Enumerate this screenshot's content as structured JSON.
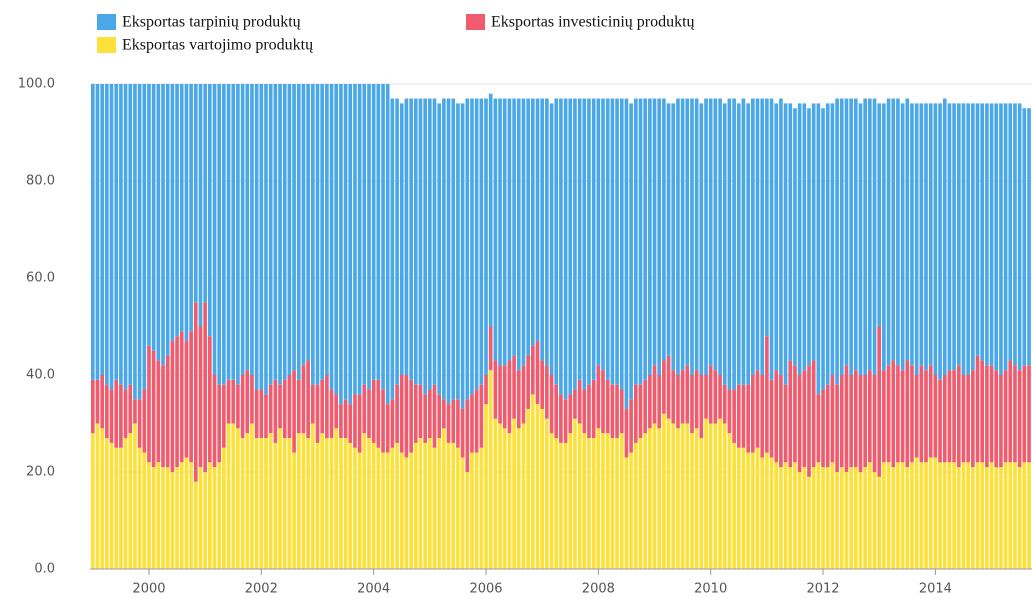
{
  "chart_data": {
    "type": "stacked_bar",
    "x": [
      1999.0,
      1999.083,
      1999.167,
      1999.25,
      1999.333,
      1999.417,
      1999.5,
      1999.583,
      1999.667,
      1999.75,
      1999.833,
      1999.917,
      2000.0,
      2000.083,
      2000.167,
      2000.25,
      2000.333,
      2000.417,
      2000.5,
      2000.583,
      2000.667,
      2000.75,
      2000.833,
      2000.917,
      2001.0,
      2001.083,
      2001.167,
      2001.25,
      2001.333,
      2001.417,
      2001.5,
      2001.583,
      2001.667,
      2001.75,
      2001.833,
      2001.917,
      2002.0,
      2002.083,
      2002.167,
      2002.25,
      2002.333,
      2002.417,
      2002.5,
      2002.583,
      2002.667,
      2002.75,
      2002.833,
      2002.917,
      2003.0,
      2003.083,
      2003.167,
      2003.25,
      2003.333,
      2003.417,
      2003.5,
      2003.583,
      2003.667,
      2003.75,
      2003.833,
      2003.917,
      2004.0,
      2004.083,
      2004.167,
      2004.25,
      2004.333,
      2004.417,
      2004.5,
      2004.583,
      2004.667,
      2004.75,
      2004.833,
      2004.917,
      2005.0,
      2005.083,
      2005.167,
      2005.25,
      2005.333,
      2005.417,
      2005.5,
      2005.583,
      2005.667,
      2005.75,
      2005.833,
      2005.917,
      2006.0,
      2006.083,
      2006.167,
      2006.25,
      2006.333,
      2006.417,
      2006.5,
      2006.583,
      2006.667,
      2006.75,
      2006.833,
      2006.917,
      2007.0,
      2007.083,
      2007.167,
      2007.25,
      2007.333,
      2007.417,
      2007.5,
      2007.583,
      2007.667,
      2007.75,
      2007.833,
      2007.917,
      2008.0,
      2008.083,
      2008.167,
      2008.25,
      2008.333,
      2008.417,
      2008.5,
      2008.583,
      2008.667,
      2008.75,
      2008.833,
      2008.917,
      2009.0,
      2009.083,
      2009.167,
      2009.25,
      2009.333,
      2009.417,
      2009.5,
      2009.583,
      2009.667,
      2009.75,
      2009.833,
      2009.917,
      2010.0,
      2010.083,
      2010.167,
      2010.25,
      2010.333,
      2010.417,
      2010.5,
      2010.583,
      2010.667,
      2010.75,
      2010.833,
      2010.917,
      2011.0,
      2011.083,
      2011.167,
      2011.25,
      2011.333,
      2011.417,
      2011.5,
      2011.583,
      2011.667,
      2011.75,
      2011.833,
      2011.917,
      2012.0,
      2012.083,
      2012.167,
      2012.25,
      2012.333,
      2012.417,
      2012.5,
      2012.583,
      2012.667,
      2012.75,
      2012.833,
      2012.917,
      2013.0,
      2013.083,
      2013.167,
      2013.25,
      2013.333,
      2013.417,
      2013.5,
      2013.583,
      2013.667,
      2013.75,
      2013.833,
      2013.917,
      2014.0,
      2014.083,
      2014.167,
      2014.25,
      2014.333,
      2014.417,
      2014.5,
      2014.583,
      2014.667,
      2014.75,
      2014.833,
      2014.917,
      2015.0,
      2015.083,
      2015.167,
      2015.25,
      2015.333,
      2015.417,
      2015.5,
      2015.583,
      2015.667
    ],
    "series": [
      {
        "name": "Eksportas tarpinių produktų",
        "color": "#4aa8e8",
        "values": [
          61,
          61,
          60,
          62,
          63,
          61,
          62,
          63,
          62,
          65,
          65,
          63,
          54,
          55,
          57,
          58,
          56,
          53,
          52,
          51,
          53,
          51,
          45,
          50,
          45,
          52,
          60,
          62,
          62,
          61,
          61,
          62,
          60,
          59,
          60,
          63,
          63,
          64,
          62,
          61,
          62,
          61,
          60,
          59,
          61,
          58,
          57,
          62,
          62,
          61,
          60,
          63,
          64,
          66,
          65,
          66,
          64,
          64,
          62,
          63,
          61,
          61,
          63,
          66,
          62,
          59,
          56,
          57,
          58,
          59,
          59,
          61,
          60,
          59,
          60,
          62,
          63,
          62,
          61,
          63,
          62,
          61,
          60,
          59,
          57,
          48,
          54,
          55,
          55,
          54,
          53,
          56,
          55,
          53,
          51,
          50,
          54,
          55,
          56,
          59,
          61,
          62,
          61,
          60,
          58,
          60,
          59,
          58,
          55,
          56,
          58,
          59,
          59,
          60,
          64,
          61,
          59,
          59,
          58,
          57,
          55,
          57,
          54,
          52,
          55,
          57,
          56,
          55,
          57,
          56,
          56,
          57,
          55,
          56,
          57,
          58,
          60,
          60,
          58,
          59,
          58,
          57,
          56,
          57,
          49,
          58,
          55,
          57,
          58,
          53,
          53,
          56,
          55,
          53,
          53,
          60,
          58,
          58,
          56,
          59,
          57,
          55,
          57,
          56,
          56,
          57,
          56,
          57,
          46,
          55,
          55,
          54,
          55,
          55,
          54,
          54,
          56,
          54,
          55,
          54,
          56,
          57,
          57,
          55,
          55,
          54,
          56,
          56,
          55,
          52,
          53,
          54,
          54,
          55,
          56,
          55,
          53,
          54,
          55,
          53,
          53
        ]
      },
      {
        "name": "Eksportas investicinių produktų",
        "color": "#f05c6e",
        "values": [
          11,
          9,
          11,
          11,
          11,
          14,
          13,
          10,
          10,
          5,
          10,
          13,
          24,
          24,
          21,
          21,
          23,
          27,
          27,
          27,
          24,
          27,
          37,
          29,
          35,
          26,
          19,
          16,
          13,
          9,
          9,
          9,
          13,
          13,
          10,
          10,
          10,
          9,
          10,
          13,
          9,
          12,
          13,
          17,
          11,
          14,
          16,
          8,
          12,
          11,
          13,
          10,
          7,
          7,
          8,
          8,
          11,
          12,
          10,
          10,
          13,
          14,
          13,
          10,
          10,
          12,
          16,
          17,
          15,
          12,
          11,
          10,
          10,
          13,
          9,
          6,
          8,
          9,
          10,
          10,
          15,
          12,
          13,
          13,
          6,
          9,
          12,
          12,
          13,
          15,
          13,
          12,
          12,
          11,
          10,
          13,
          10,
          11,
          12,
          11,
          10,
          9,
          8,
          6,
          9,
          9,
          11,
          12,
          13,
          13,
          11,
          11,
          11,
          9,
          10,
          11,
          12,
          11,
          11,
          11,
          12,
          11,
          11,
          13,
          11,
          11,
          11,
          12,
          12,
          12,
          13,
          9,
          12,
          11,
          9,
          8,
          9,
          11,
          13,
          13,
          14,
          16,
          16,
          17,
          24,
          16,
          19,
          19,
          16,
          22,
          20,
          20,
          20,
          23,
          22,
          14,
          16,
          17,
          18,
          18,
          19,
          22,
          19,
          20,
          20,
          19,
          19,
          20,
          31,
          19,
          20,
          22,
          20,
          19,
          22,
          20,
          17,
          20,
          19,
          19,
          17,
          17,
          18,
          19,
          19,
          21,
          18,
          18,
          20,
          22,
          21,
          21,
          20,
          20,
          19,
          19,
          21,
          20,
          20,
          20,
          20
        ]
      },
      {
        "name": "Eksportas vartojimo produktų",
        "color": "#fbe13a",
        "values": [
          28,
          30,
          29,
          27,
          26,
          25,
          25,
          27,
          28,
          30,
          25,
          24,
          22,
          21,
          22,
          21,
          21,
          20,
          21,
          22,
          23,
          22,
          18,
          21,
          20,
          22,
          21,
          22,
          25,
          30,
          30,
          29,
          27,
          28,
          30,
          27,
          27,
          27,
          28,
          26,
          29,
          27,
          27,
          24,
          28,
          28,
          27,
          30,
          26,
          28,
          27,
          27,
          29,
          27,
          27,
          26,
          25,
          24,
          28,
          27,
          26,
          25,
          24,
          24,
          25,
          26,
          24,
          23,
          24,
          26,
          27,
          26,
          27,
          25,
          27,
          29,
          26,
          26,
          25,
          23,
          20,
          24,
          24,
          25,
          34,
          41,
          31,
          30,
          29,
          28,
          31,
          29,
          30,
          33,
          36,
          34,
          33,
          31,
          28,
          27,
          26,
          26,
          28,
          31,
          30,
          28,
          27,
          27,
          29,
          28,
          28,
          27,
          27,
          28,
          23,
          24,
          26,
          27,
          28,
          29,
          30,
          29,
          32,
          31,
          30,
          29,
          30,
          30,
          28,
          29,
          27,
          31,
          30,
          30,
          31,
          30,
          28,
          26,
          25,
          25,
          24,
          24,
          25,
          23,
          24,
          23,
          22,
          21,
          22,
          21,
          22,
          20,
          21,
          19,
          21,
          22,
          21,
          21,
          22,
          20,
          21,
          20,
          21,
          21,
          20,
          21,
          22,
          20,
          19,
          22,
          22,
          21,
          22,
          22,
          21,
          22,
          23,
          22,
          22,
          23,
          23,
          22,
          22,
          22,
          22,
          21,
          22,
          22,
          21,
          22,
          22,
          21,
          22,
          21,
          21,
          22,
          22,
          22,
          21,
          22,
          22
        ]
      }
    ],
    "xlim": [
      1998.95,
      2015.72
    ],
    "xticks": [
      2000,
      2002,
      2004,
      2006,
      2008,
      2010,
      2012,
      2014
    ],
    "ylim": [
      0,
      100
    ],
    "yticks": [
      {
        "value": 0,
        "label": "0.0"
      },
      {
        "value": 20,
        "label": "20.0"
      },
      {
        "value": 40,
        "label": "40.0"
      },
      {
        "value": 60,
        "label": "60.0"
      },
      {
        "value": 80,
        "label": "80.0"
      },
      {
        "value": 100,
        "label": "100.0"
      }
    ],
    "grid": true,
    "legend": "top"
  }
}
